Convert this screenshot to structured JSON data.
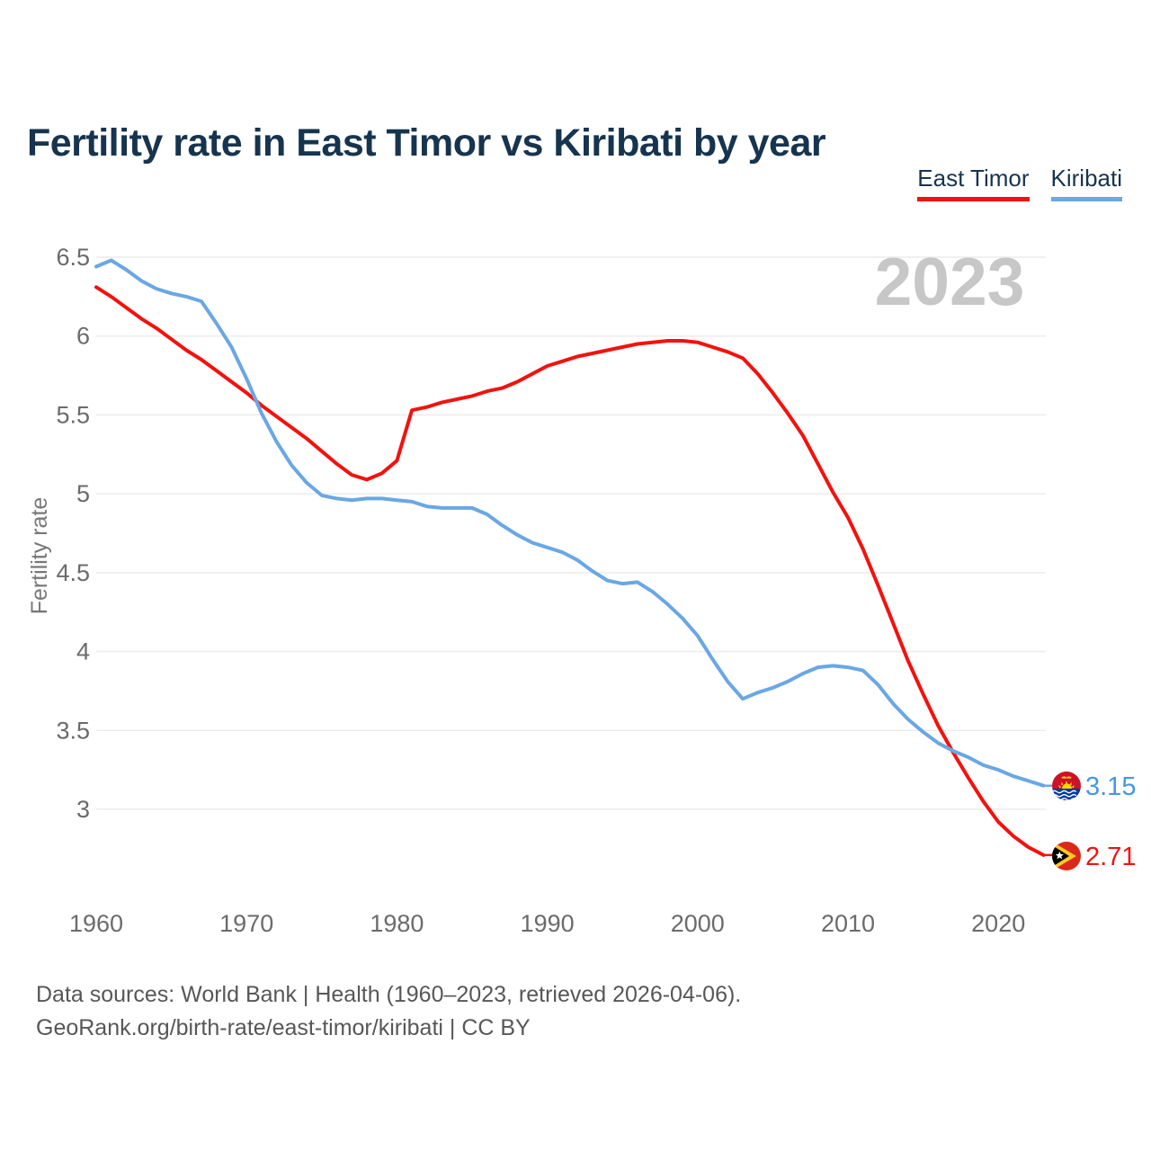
{
  "title": "Fertility rate in East Timor vs Kiribati by year",
  "watermark": "2023",
  "legend": [
    {
      "label": "East Timor",
      "color": "#f2120e"
    },
    {
      "label": "Kiribati",
      "color": "#6aa7e4"
    }
  ],
  "y_axis": {
    "label": "Fertility rate",
    "ticks": [
      "6.5",
      "6",
      "5.5",
      "5",
      "4.5",
      "4",
      "3.5",
      "3"
    ]
  },
  "x_axis": {
    "ticks": [
      "1960",
      "1970",
      "1980",
      "1990",
      "2000",
      "2010",
      "2020"
    ]
  },
  "end_labels": [
    {
      "series": "Kiribati",
      "value": "3.15",
      "color": "#4596e8",
      "flag": "kiribati-flag"
    },
    {
      "series": "East Timor",
      "value": "2.71",
      "color": "#f2120e",
      "flag": "east-timor-flag"
    }
  ],
  "footer": {
    "line1": "Data sources: World Bank | Health (1960–2023, retrieved 2026-04-06).",
    "line2": "GeoRank.org/birth-rate/east-timor/kiribati | CC BY"
  },
  "chart_data": {
    "type": "line",
    "title": "Fertility rate in East Timor vs Kiribati by year",
    "xlabel": "",
    "ylabel": "Fertility rate",
    "xlim": [
      1958.8,
      2023.2
    ],
    "ylim": [
      2.6,
      6.6
    ],
    "grid": "horizontal",
    "legend_position": "top-right",
    "x": [
      1960,
      1961,
      1962,
      1963,
      1964,
      1965,
      1966,
      1967,
      1968,
      1969,
      1970,
      1971,
      1972,
      1973,
      1974,
      1975,
      1976,
      1977,
      1978,
      1979,
      1980,
      1981,
      1982,
      1983,
      1984,
      1985,
      1986,
      1987,
      1988,
      1989,
      1990,
      1991,
      1992,
      1993,
      1994,
      1995,
      1996,
      1997,
      1998,
      1999,
      2000,
      2001,
      2002,
      2003,
      2004,
      2005,
      2006,
      2007,
      2008,
      2009,
      2010,
      2011,
      2012,
      2013,
      2014,
      2015,
      2016,
      2017,
      2018,
      2019,
      2020,
      2021,
      2022,
      2023
    ],
    "series": [
      {
        "name": "East Timor",
        "color": "#f2120e",
        "final_value": 2.71,
        "values": [
          6.31,
          6.25,
          6.18,
          6.11,
          6.05,
          5.98,
          5.91,
          5.85,
          5.78,
          5.71,
          5.64,
          5.56,
          5.49,
          5.42,
          5.35,
          5.27,
          5.19,
          5.12,
          5.09,
          5.13,
          5.21,
          5.53,
          5.55,
          5.58,
          5.6,
          5.62,
          5.65,
          5.67,
          5.71,
          5.76,
          5.81,
          5.84,
          5.87,
          5.89,
          5.91,
          5.93,
          5.95,
          5.96,
          5.97,
          5.97,
          5.96,
          5.93,
          5.9,
          5.86,
          5.76,
          5.64,
          5.51,
          5.37,
          5.19,
          5.01,
          4.85,
          4.65,
          4.42,
          4.18,
          3.94,
          3.73,
          3.53,
          3.36,
          3.2,
          3.05,
          2.92,
          2.83,
          2.76,
          2.71
        ]
      },
      {
        "name": "Kiribati",
        "color": "#6aa7e4",
        "final_value": 3.15,
        "values": [
          6.44,
          6.48,
          6.42,
          6.35,
          6.3,
          6.27,
          6.25,
          6.22,
          6.08,
          5.93,
          5.73,
          5.51,
          5.33,
          5.18,
          5.07,
          4.99,
          4.97,
          4.96,
          4.97,
          4.97,
          4.96,
          4.95,
          4.92,
          4.91,
          4.91,
          4.91,
          4.87,
          4.8,
          4.74,
          4.69,
          4.66,
          4.63,
          4.58,
          4.51,
          4.45,
          4.43,
          4.44,
          4.38,
          4.3,
          4.21,
          4.1,
          3.95,
          3.81,
          3.7,
          3.74,
          3.77,
          3.81,
          3.86,
          3.9,
          3.91,
          3.9,
          3.88,
          3.79,
          3.67,
          3.57,
          3.49,
          3.42,
          3.37,
          3.33,
          3.28,
          3.25,
          3.21,
          3.18,
          3.15
        ]
      }
    ]
  }
}
